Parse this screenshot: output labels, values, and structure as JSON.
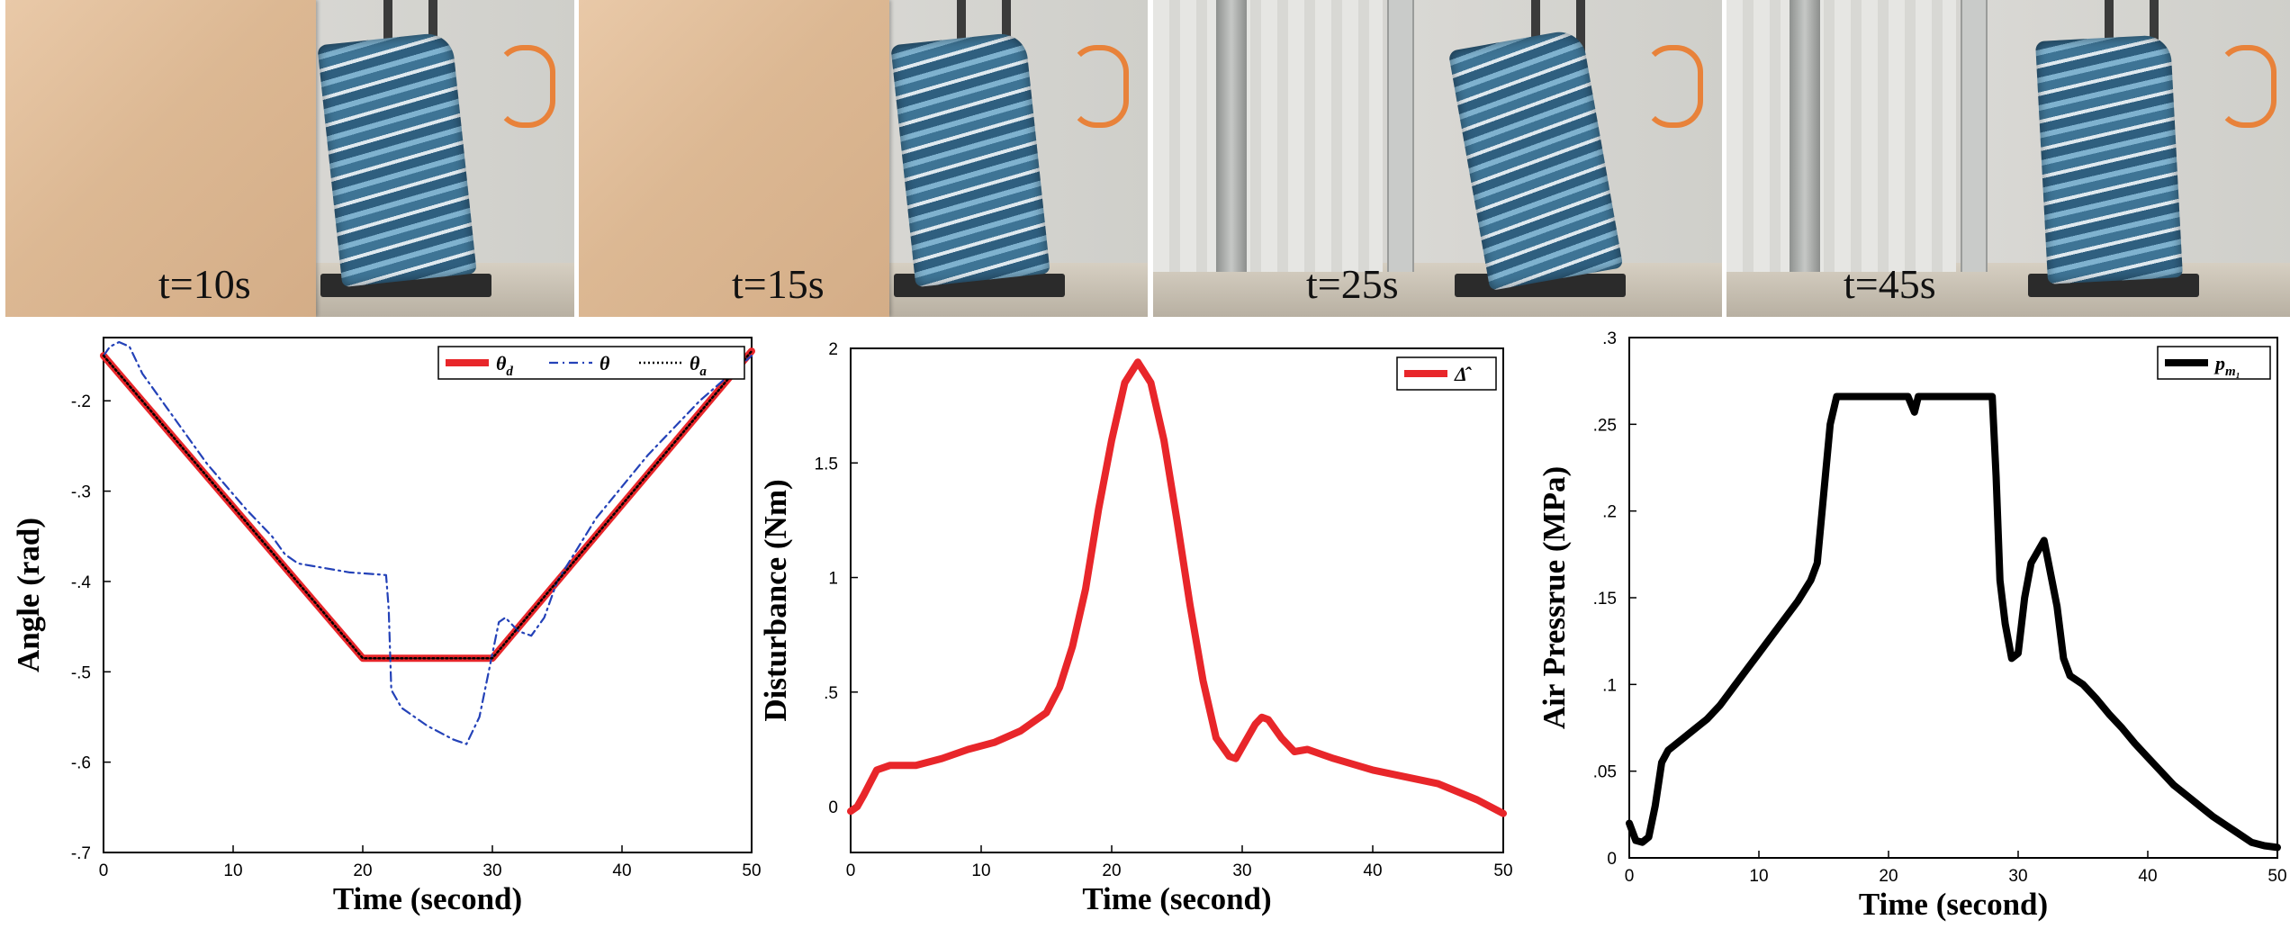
{
  "photos": [
    {
      "caption": "t=10s",
      "scene": "board"
    },
    {
      "caption": "t=15s",
      "scene": "board"
    },
    {
      "caption": "t=25s",
      "scene": "curtain"
    },
    {
      "caption": "t=45s",
      "scene": "curtain"
    }
  ],
  "colors": {
    "red": "#e8262a",
    "blue": "#2442b8",
    "black": "#000000"
  },
  "chart_data": [
    {
      "type": "line",
      "xlabel": "Time (second)",
      "ylabel": "Angle (rad)",
      "xlim": [
        0,
        50
      ],
      "ylim": [
        -0.7,
        -0.13
      ],
      "xticks": [
        0,
        10,
        20,
        30,
        40,
        50
      ],
      "yticks": [
        -0.7,
        -0.6,
        -0.5,
        -0.4,
        -0.3,
        -0.2
      ],
      "legend_position": "top-right",
      "series": [
        {
          "name": "θ_d",
          "legend_main": "θ",
          "legend_sub": "d",
          "color": "#e8262a",
          "style": "solid",
          "x": [
            0,
            20,
            30,
            50
          ],
          "y": [
            -0.15,
            -0.485,
            -0.485,
            -0.145
          ]
        },
        {
          "name": "θ",
          "legend_main": "θ",
          "legend_sub": "",
          "color": "#2442b8",
          "style": "dashdot",
          "x": [
            0,
            0.5,
            1.2,
            2,
            3,
            5,
            8,
            11,
            13,
            14,
            15,
            17,
            19,
            21,
            21.8,
            22,
            22.2,
            23,
            25,
            27,
            28,
            29,
            30,
            30.5,
            31,
            32,
            33,
            34,
            35,
            38,
            42,
            46,
            50
          ],
          "y": [
            -0.15,
            -0.14,
            -0.135,
            -0.14,
            -0.17,
            -0.21,
            -0.27,
            -0.32,
            -0.35,
            -0.37,
            -0.38,
            -0.385,
            -0.39,
            -0.392,
            -0.393,
            -0.43,
            -0.52,
            -0.54,
            -0.56,
            -0.575,
            -0.58,
            -0.55,
            -0.48,
            -0.445,
            -0.44,
            -0.455,
            -0.46,
            -0.44,
            -0.4,
            -0.33,
            -0.26,
            -0.2,
            -0.15
          ]
        },
        {
          "name": "θ_a",
          "legend_main": "θ",
          "legend_sub": "a",
          "color": "#000000",
          "style": "dotted",
          "x": [
            0,
            20,
            30,
            50
          ],
          "y": [
            -0.15,
            -0.485,
            -0.485,
            -0.145
          ]
        }
      ]
    },
    {
      "type": "line",
      "xlabel": "Time (second)",
      "ylabel": "Disturbance (Nm)",
      "xlim": [
        0,
        50
      ],
      "ylim": [
        -0.2,
        2
      ],
      "xticks": [
        0,
        10,
        20,
        30,
        40,
        50
      ],
      "yticks": [
        0,
        0.5,
        1,
        1.5,
        2
      ],
      "legend_position": "top-right",
      "series": [
        {
          "name": "Δ̂",
          "legend_main": "Δ̂",
          "legend_sub": "",
          "color": "#e8262a",
          "style": "solid",
          "x": [
            0,
            0.5,
            1,
            2,
            3,
            4,
            5,
            7,
            9,
            11,
            13,
            14,
            15,
            16,
            17,
            18,
            19,
            20,
            21,
            22,
            23,
            24,
            25,
            26,
            27,
            28,
            29,
            29.5,
            30,
            31,
            31.5,
            32,
            33,
            34,
            35,
            37,
            40,
            45,
            48,
            50
          ],
          "y": [
            -0.02,
            0.0,
            0.05,
            0.16,
            0.18,
            0.18,
            0.18,
            0.21,
            0.25,
            0.28,
            0.33,
            0.37,
            0.41,
            0.52,
            0.7,
            0.95,
            1.3,
            1.6,
            1.85,
            1.94,
            1.85,
            1.6,
            1.25,
            0.88,
            0.55,
            0.3,
            0.22,
            0.21,
            0.26,
            0.36,
            0.39,
            0.38,
            0.3,
            0.24,
            0.25,
            0.21,
            0.16,
            0.1,
            0.03,
            -0.03
          ]
        }
      ]
    },
    {
      "type": "line",
      "xlabel": "Time (second)",
      "ylabel": "Air Pressrue (MPa)",
      "xlim": [
        0,
        50
      ],
      "ylim": [
        0,
        0.3
      ],
      "xticks": [
        0,
        10,
        20,
        30,
        40,
        50
      ],
      "yticks": [
        0,
        0.05,
        0.1,
        0.15,
        0.2,
        0.25,
        0.3
      ],
      "legend_position": "top-right",
      "series": [
        {
          "name": "p_m1",
          "legend_main": "p",
          "legend_sub": "m₁",
          "color": "#000000",
          "style": "solid",
          "x": [
            0,
            0.5,
            1,
            1.5,
            2,
            2.5,
            3,
            4,
            5,
            6,
            7,
            8,
            9,
            10,
            11,
            12,
            13,
            14,
            14.5,
            15,
            15.5,
            16,
            17,
            18,
            20,
            21.5,
            22,
            22.3,
            23,
            25,
            27,
            28,
            28.3,
            28.6,
            29,
            29.5,
            30,
            30.5,
            31,
            32,
            33,
            33.5,
            34,
            35,
            36,
            37,
            38,
            39,
            40,
            41,
            42,
            43,
            44,
            45,
            46,
            47,
            48,
            49,
            50
          ],
          "y": [
            0.02,
            0.01,
            0.009,
            0.012,
            0.03,
            0.055,
            0.062,
            0.068,
            0.074,
            0.08,
            0.088,
            0.098,
            0.108,
            0.118,
            0.128,
            0.138,
            0.148,
            0.16,
            0.17,
            0.21,
            0.25,
            0.266,
            0.266,
            0.266,
            0.266,
            0.266,
            0.257,
            0.266,
            0.266,
            0.266,
            0.266,
            0.266,
            0.22,
            0.16,
            0.135,
            0.115,
            0.118,
            0.15,
            0.17,
            0.183,
            0.145,
            0.115,
            0.105,
            0.1,
            0.092,
            0.083,
            0.075,
            0.066,
            0.058,
            0.05,
            0.042,
            0.036,
            0.03,
            0.024,
            0.019,
            0.014,
            0.009,
            0.007,
            0.006
          ]
        }
      ]
    }
  ]
}
